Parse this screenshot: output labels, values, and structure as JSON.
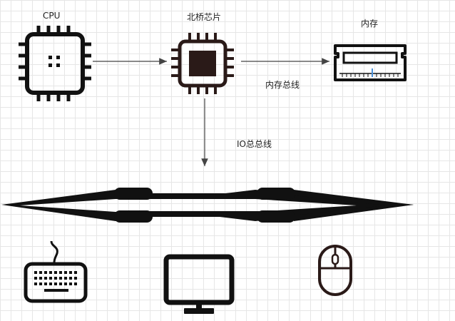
{
  "labels": {
    "cpu": "CPU",
    "northbridge": "北桥芯片",
    "memory": "内存",
    "memory_bus": "内存总线",
    "io_bus": "IO总总线"
  },
  "icons": {
    "cpu": "cpu-chip-icon",
    "northbridge": "chip-icon",
    "memory": "ram-module-icon",
    "keyboard": "keyboard-icon",
    "monitor": "monitor-icon",
    "mouse": "mouse-icon"
  },
  "colors": {
    "stroke": "#111111",
    "northbridge_stroke": "#2a1a18",
    "arrow": "#444444",
    "accent": "#4a90d9"
  }
}
